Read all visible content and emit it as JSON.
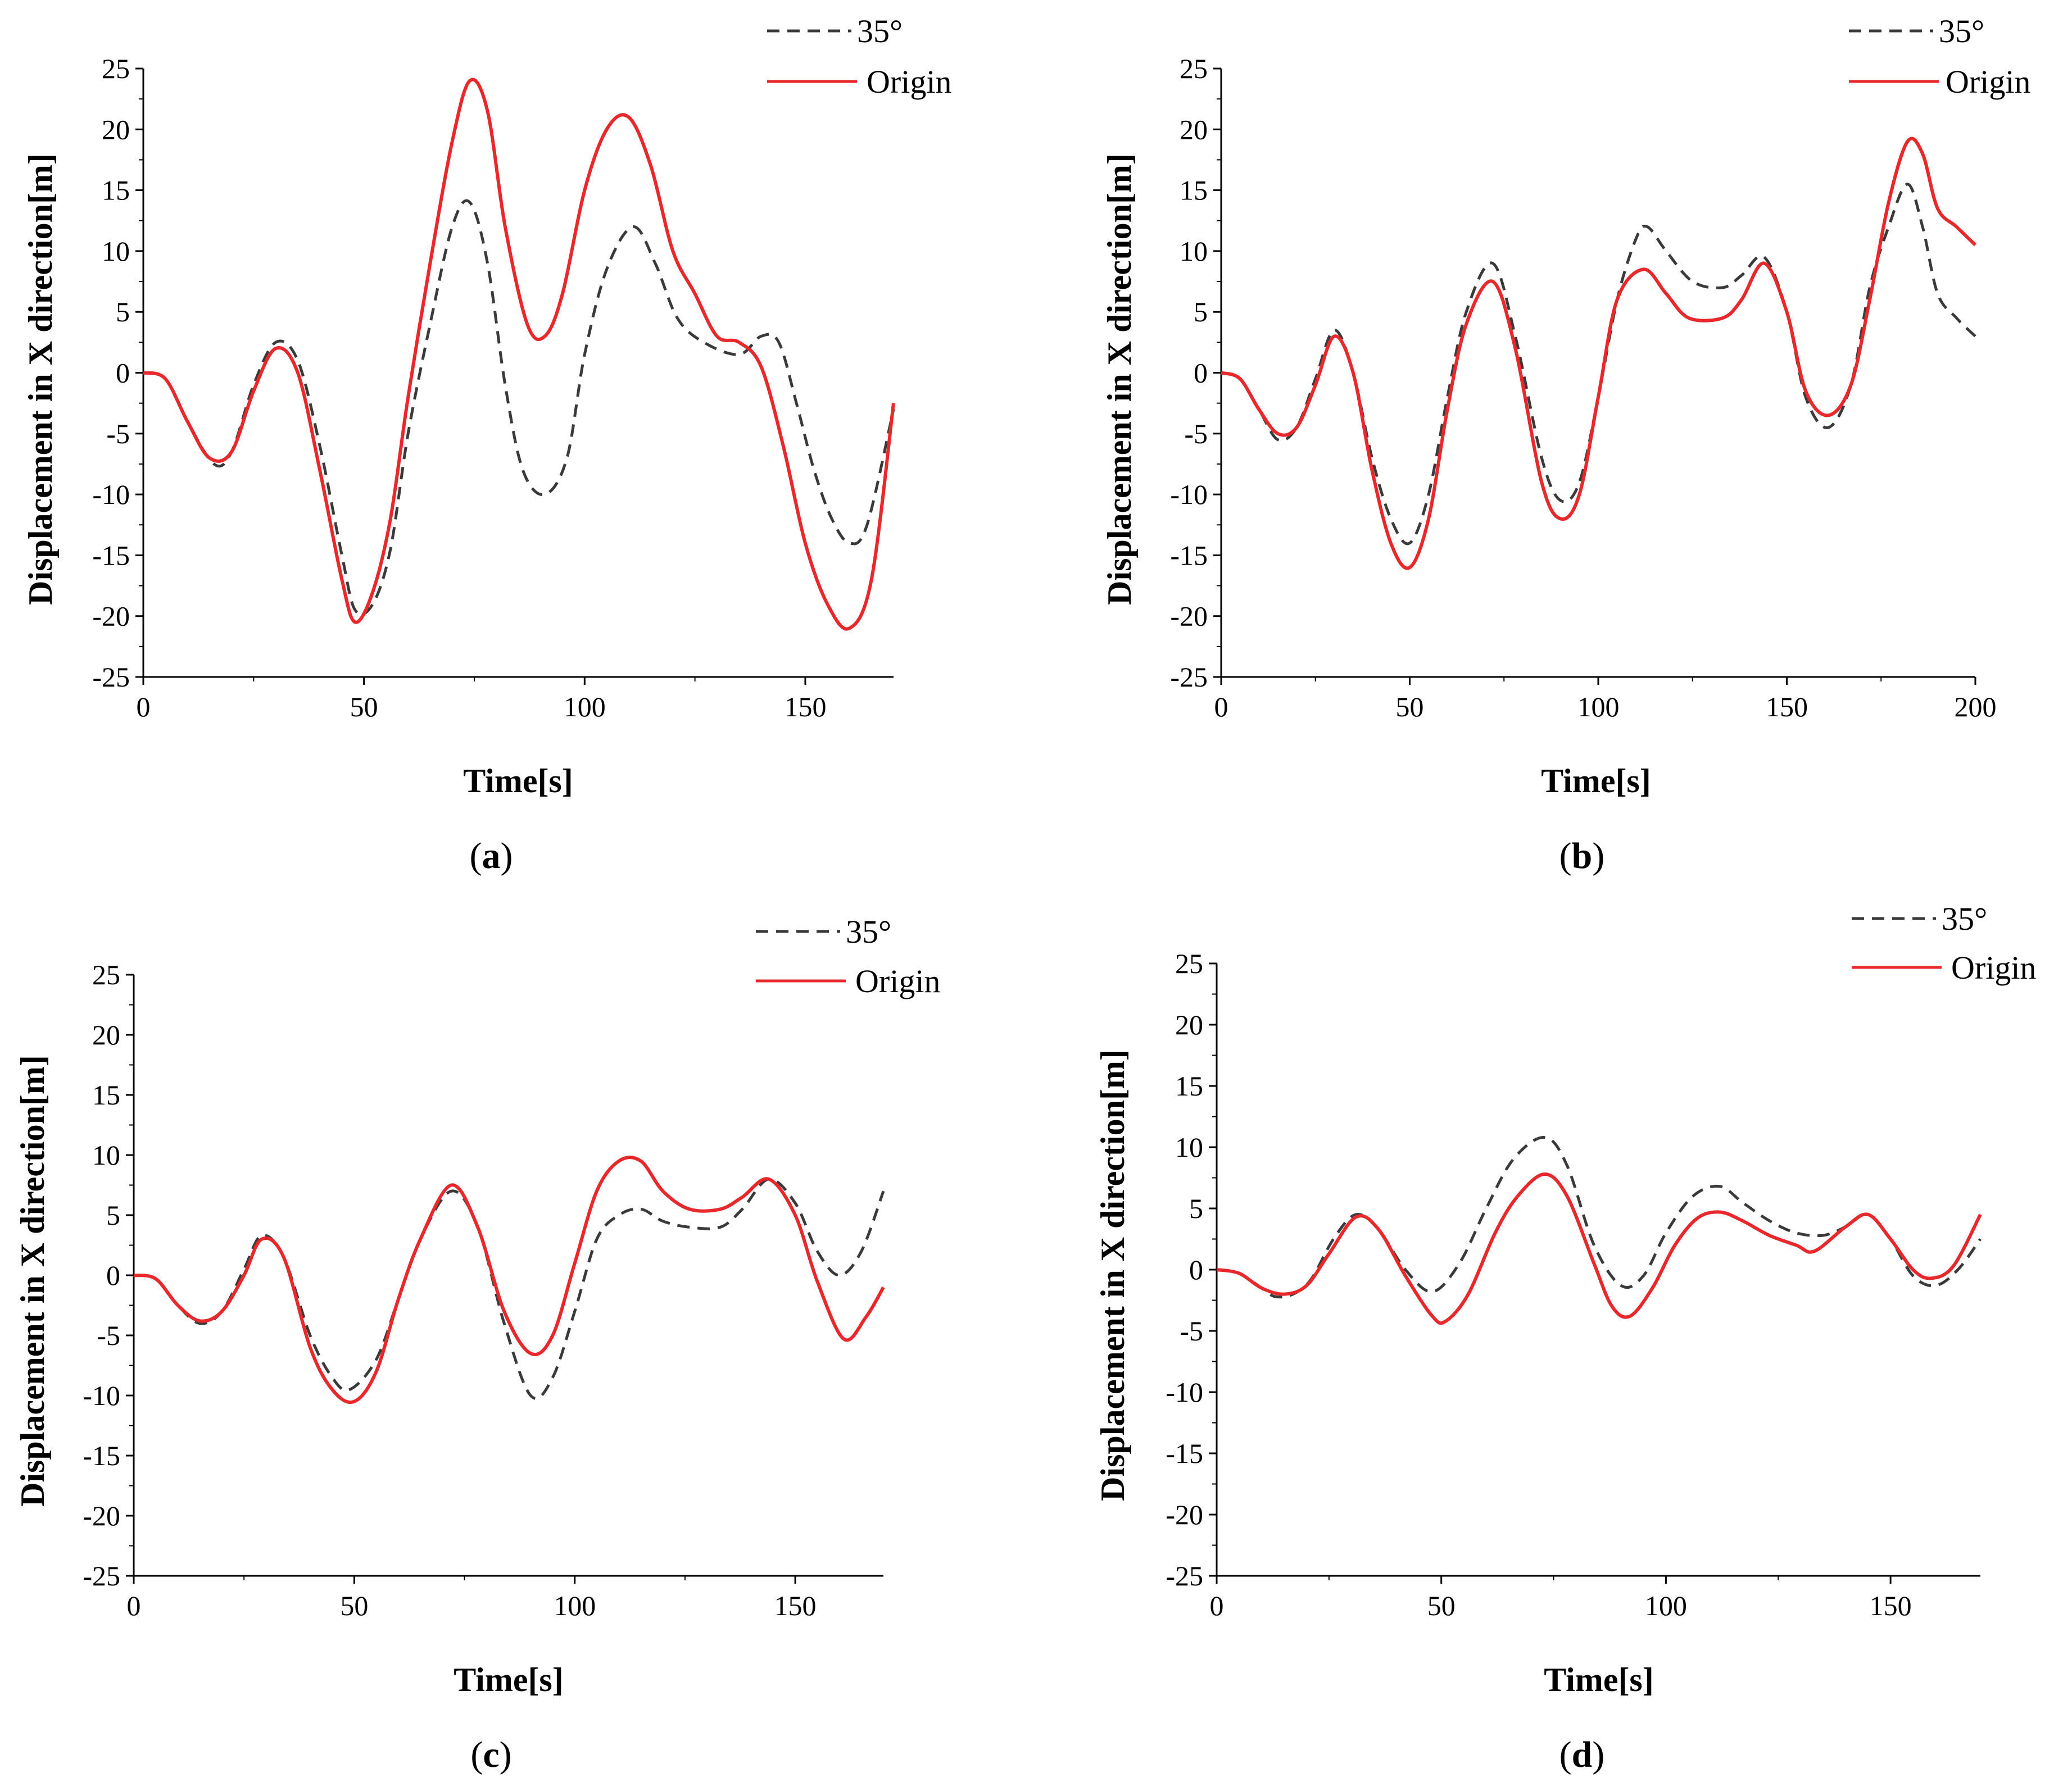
{
  "figure": {
    "panels": [
      {
        "caption": "(a)",
        "caption_letter": "a",
        "xlabel": "Time[s]",
        "ylabel": "Displacement in X direction[m]",
        "legend": [
          "35°",
          "Origin"
        ]
      },
      {
        "caption": "(b)",
        "caption_letter": "b",
        "xlabel": "Time[s]",
        "ylabel": "Displacement in X direction[m]",
        "legend": [
          "35°",
          "Origin"
        ]
      },
      {
        "caption": "(c)",
        "caption_letter": "c",
        "xlabel": "Time[s]",
        "ylabel": "Displacement in X direction[m]",
        "legend": [
          "35°",
          "Origin"
        ]
      },
      {
        "caption": "(d)",
        "caption_letter": "d",
        "xlabel": "Time[s]",
        "ylabel": "Displacement in X direction[m]",
        "legend": [
          "35°",
          "Origin"
        ]
      }
    ]
  },
  "colors": {
    "origin": "#e8282b",
    "angle35": "#3a3a3a",
    "axis": "#000000"
  },
  "chart_data": [
    {
      "type": "line",
      "title": "",
      "xlabel": "Time[s]",
      "ylabel": "Displacement in X direction[m]",
      "xlim": [
        0,
        170
      ],
      "ylim": [
        -25,
        25
      ],
      "xticks": [
        0,
        50,
        100,
        150
      ],
      "yticks": [
        -25,
        -20,
        -15,
        -10,
        -5,
        0,
        5,
        10,
        15,
        20,
        25
      ],
      "legend_position": "top-right",
      "series": [
        {
          "name": "35°",
          "style": "dashed",
          "x": [
            0,
            5,
            10,
            16,
            20,
            25,
            30,
            35,
            40,
            45,
            48,
            52,
            56,
            60,
            65,
            70,
            74,
            78,
            82,
            86,
            91,
            96,
            100,
            105,
            111,
            116,
            121,
            127,
            135,
            140,
            144,
            148,
            152,
            156,
            160,
            164,
            170
          ],
          "y": [
            0,
            -0.5,
            -4,
            -7.5,
            -6.5,
            -1,
            2.5,
            1,
            -6,
            -15,
            -19.5,
            -19,
            -14.5,
            -5,
            4,
            12,
            14,
            9,
            -1,
            -8,
            -10,
            -7,
            1.5,
            8.5,
            12,
            9,
            4.5,
            2.5,
            1.5,
            3,
            2.5,
            -2.5,
            -8,
            -12,
            -14,
            -12.5,
            -3
          ]
        },
        {
          "name": "Origin",
          "style": "solid",
          "x": [
            0,
            5,
            10,
            15,
            20,
            25,
            30,
            35,
            40,
            45,
            48,
            52,
            56,
            60,
            65,
            70,
            74,
            78,
            82,
            87,
            91,
            95,
            100,
            105,
            110,
            115,
            120,
            125,
            130,
            135,
            140,
            145,
            150,
            155,
            160,
            165,
            170
          ],
          "y": [
            0,
            -0.5,
            -4,
            -7,
            -6.5,
            -1.5,
            2,
            0,
            -8,
            -17,
            -20.5,
            -18,
            -12,
            -2,
            9,
            19,
            24,
            21.5,
            12,
            4,
            3,
            6.5,
            15,
            20,
            21,
            17,
            10,
            6.5,
            3,
            2.5,
            0.5,
            -6,
            -14,
            -19,
            -21,
            -17,
            -2.5
          ]
        }
      ]
    },
    {
      "type": "line",
      "title": "",
      "xlabel": "Time[s]",
      "ylabel": "Displacement in X direction[m]",
      "xlim": [
        0,
        200
      ],
      "ylim": [
        -25,
        25
      ],
      "xticks": [
        0,
        50,
        100,
        150,
        200
      ],
      "yticks": [
        -25,
        -20,
        -15,
        -10,
        -5,
        0,
        5,
        10,
        15,
        20,
        25
      ],
      "legend_position": "top-right",
      "series": [
        {
          "name": "35°",
          "style": "dashed",
          "x": [
            0,
            5,
            10,
            15,
            20,
            25,
            30,
            35,
            40,
            45,
            50,
            55,
            60,
            65,
            72,
            78,
            85,
            90,
            95,
            100,
            105,
            110,
            113,
            118,
            125,
            133,
            138,
            144,
            150,
            155,
            161,
            167,
            172,
            177,
            182,
            186,
            190,
            195,
            200
          ],
          "y": [
            0,
            -0.5,
            -3,
            -5.5,
            -4.5,
            -0.5,
            3.5,
            0,
            -7,
            -12,
            -14,
            -10,
            -2,
            5,
            9,
            3,
            -7,
            -10.5,
            -9,
            -2,
            6,
            11,
            12,
            10,
            7.5,
            7,
            8,
            9.5,
            5,
            -2,
            -4.5,
            -1,
            7,
            12,
            15.5,
            12,
            6.5,
            4.5,
            3
          ]
        },
        {
          "name": "Origin",
          "style": "solid",
          "x": [
            0,
            5,
            10,
            15,
            20,
            25,
            30,
            35,
            40,
            45,
            50,
            55,
            60,
            65,
            72,
            78,
            85,
            90,
            95,
            100,
            105,
            112,
            118,
            124,
            133,
            138,
            144,
            150,
            155,
            161,
            167,
            172,
            177,
            182,
            186,
            190,
            195,
            200
          ],
          "y": [
            0,
            -0.5,
            -3,
            -5,
            -4.5,
            -1,
            3,
            0,
            -8,
            -14,
            -16,
            -12,
            -3,
            4,
            7.5,
            2,
            -9,
            -12,
            -10,
            -2,
            6,
            8.5,
            6.5,
            4.5,
            4.5,
            6,
            9,
            5,
            -1.5,
            -3.5,
            -1,
            6,
            14,
            19,
            18,
            13.5,
            12,
            10.5
          ]
        }
      ]
    },
    {
      "type": "line",
      "title": "",
      "xlabel": "Time[s]",
      "ylabel": "Displacement in X direction[m]",
      "xlim": [
        0,
        170
      ],
      "ylim": [
        -25,
        25
      ],
      "xticks": [
        0,
        50,
        100,
        150
      ],
      "yticks": [
        -25,
        -20,
        -15,
        -10,
        -5,
        0,
        5,
        10,
        15,
        20,
        25
      ],
      "legend_position": "top-right",
      "series": [
        {
          "name": "35°",
          "style": "dashed",
          "x": [
            0,
            5,
            10,
            15,
            20,
            25,
            29,
            34,
            40,
            45,
            49,
            55,
            60,
            65,
            72,
            78,
            84,
            90,
            95,
            100,
            105,
            110,
            115,
            120,
            126,
            133,
            138,
            144,
            150,
            155,
            160,
            165,
            170
          ],
          "y": [
            0,
            -0.3,
            -2.5,
            -4,
            -3,
            0.5,
            3.3,
            1.5,
            -5,
            -8.5,
            -9.5,
            -7,
            -2,
            3,
            7,
            4,
            -4,
            -10,
            -8.5,
            -3,
            3,
            5,
            5.5,
            4.5,
            4,
            4,
            5.5,
            8,
            6,
            2,
            0,
            2,
            7
          ]
        },
        {
          "name": "Origin",
          "style": "solid",
          "x": [
            0,
            5,
            10,
            15,
            20,
            25,
            29,
            34,
            40,
            45,
            50,
            55,
            60,
            65,
            72,
            78,
            84,
            90,
            95,
            100,
            105,
            110,
            115,
            120,
            126,
            133,
            138,
            144,
            150,
            155,
            161,
            166,
            170
          ],
          "y": [
            0,
            -0.3,
            -2.5,
            -3.8,
            -3,
            0,
            3,
            1.5,
            -6,
            -9.5,
            -10.5,
            -8,
            -2,
            3,
            7.5,
            4,
            -3,
            -6.5,
            -5,
            1,
            7,
            9.5,
            9.5,
            7,
            5.5,
            5.5,
            6.5,
            8,
            5,
            -0.5,
            -5.3,
            -3.5,
            -1
          ]
        }
      ]
    },
    {
      "type": "line",
      "title": "",
      "xlabel": "Time[s]",
      "ylabel": "Displacement in X direction[m]",
      "xlim": [
        0,
        170
      ],
      "ylim": [
        -25,
        25
      ],
      "xticks": [
        0,
        50,
        100,
        150
      ],
      "yticks": [
        -25,
        -20,
        -15,
        -10,
        -5,
        0,
        5,
        10,
        15,
        20,
        25
      ],
      "legend_position": "top-right",
      "series": [
        {
          "name": "35°",
          "style": "dashed",
          "x": [
            0,
            5,
            10,
            13,
            17,
            21,
            26,
            31,
            36,
            42,
            48,
            54,
            60,
            66,
            73,
            78,
            84,
            90,
            95,
            100,
            106,
            112,
            117,
            123,
            129,
            135,
            140,
            145,
            150,
            155,
            160,
            165,
            170
          ],
          "y": [
            0,
            -0.3,
            -1.5,
            -2.2,
            -2,
            -0.8,
            2.5,
            4.5,
            3.3,
            0,
            -1.8,
            0.5,
            5,
            9,
            10.8,
            8.5,
            2,
            -1.3,
            -0.5,
            3,
            6,
            6.8,
            5.5,
            4,
            3,
            2.8,
            3.5,
            4.5,
            2.5,
            -0.5,
            -1.3,
            0,
            2.5
          ]
        },
        {
          "name": "Origin",
          "style": "solid",
          "x": [
            0,
            5,
            10,
            15,
            20,
            25,
            31,
            36,
            42,
            48,
            51,
            56,
            62,
            67,
            73,
            78,
            84,
            88,
            92,
            97,
            102,
            107,
            112,
            117,
            123,
            129,
            133,
            140,
            145,
            150,
            155,
            159,
            164,
            170
          ],
          "y": [
            0,
            -0.3,
            -1.5,
            -2,
            -1.3,
            1.3,
            4.3,
            3.3,
            -0.5,
            -3.8,
            -4.2,
            -2,
            3,
            6,
            7.8,
            6,
            0.5,
            -3,
            -3.8,
            -1.5,
            2,
            4.2,
            4.7,
            4,
            2.8,
            2,
            1.5,
            3.5,
            4.5,
            2.5,
            0,
            -0.7,
            0.3,
            4.5
          ]
        }
      ]
    }
  ]
}
